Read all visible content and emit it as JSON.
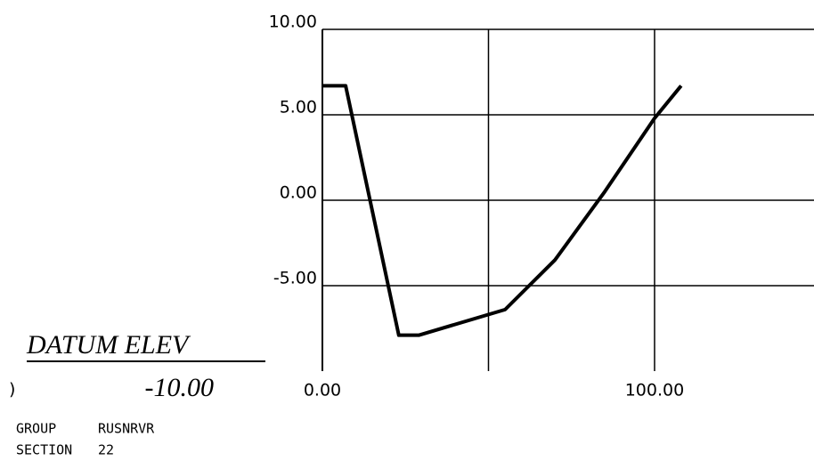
{
  "chart_data": {
    "type": "line",
    "x": [
      0,
      7,
      23,
      29,
      55,
      70,
      85,
      100,
      108
    ],
    "series": [
      {
        "color": "#000000",
        "values": [
          6.7,
          6.7,
          -7.9,
          -7.9,
          -6.4,
          -3.5,
          0.5,
          4.8,
          6.7
        ]
      }
    ],
    "xlim": [
      0,
      148
    ],
    "ylim": [
      -10,
      10
    ],
    "xticks": [
      {
        "value": 0,
        "label": "0.00"
      },
      {
        "value": 100,
        "label": "100.00"
      }
    ],
    "xgrid": [
      50,
      100
    ],
    "yticks": [
      {
        "value": 10,
        "label": "10.00"
      },
      {
        "value": 5,
        "label": "5.00"
      },
      {
        "value": 0,
        "label": "0.00"
      },
      {
        "value": -5,
        "label": "-5.00"
      }
    ],
    "grid": true,
    "annotations": {
      "bracket": ")",
      "datum_label": "DATUM ELEV",
      "datum_value": "-10.00",
      "group_label": "GROUP",
      "group_value": "RUSNRVR",
      "section_label": "SECTION",
      "section_value": "22"
    }
  }
}
